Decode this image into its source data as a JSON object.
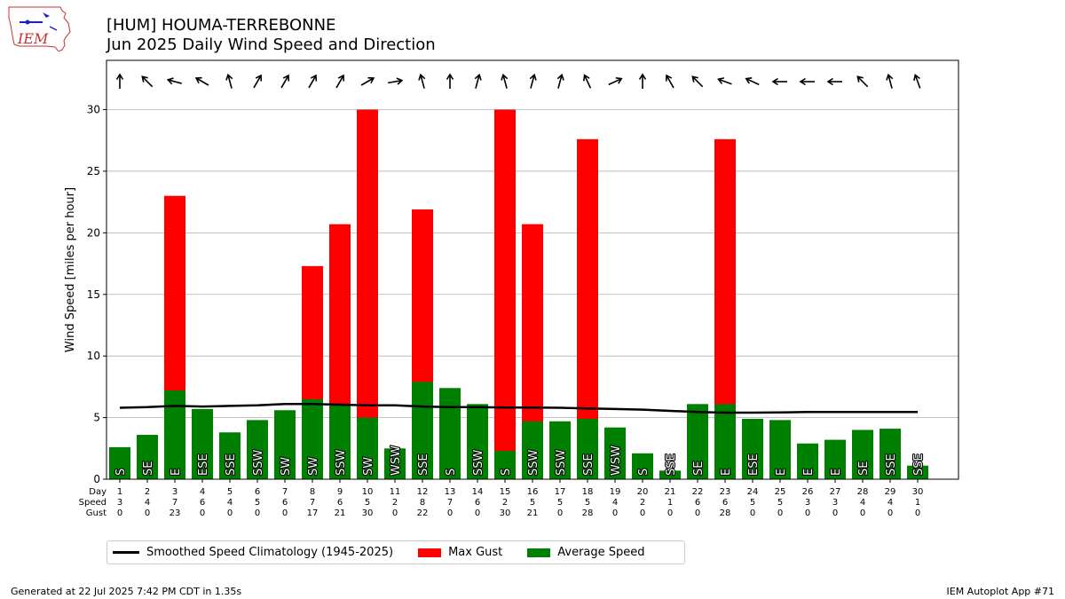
{
  "title": "[HUM] HOUMA-TERREBONNE",
  "subtitle": "Jun 2025 Daily Wind Speed and Direction",
  "logo_text": "IEM",
  "footer_left": "Generated at 22 Jul 2025 7:42 PM CDT in 1.35s",
  "footer_right": "IEM Autoplot App #71",
  "legend": {
    "climatology": "Smoothed Speed Climatology (1945-2025)",
    "gust": "Max Gust",
    "avg": "Average Speed"
  },
  "colors": {
    "gust": "#ff0000",
    "avg": "#008000",
    "climatology": "#000000"
  },
  "chart_data": {
    "type": "bar",
    "ylabel": "Wind Speed [miles per hour]",
    "ylim": [
      0,
      34
    ],
    "yticks": [
      0,
      5,
      10,
      15,
      20,
      25,
      30
    ],
    "grid": true,
    "legend_position": "below",
    "row_labels": [
      "Day",
      "Speed",
      "Gust"
    ],
    "days": [
      1,
      2,
      3,
      4,
      5,
      6,
      7,
      8,
      9,
      10,
      11,
      12,
      13,
      14,
      15,
      16,
      17,
      18,
      19,
      20,
      21,
      22,
      23,
      24,
      25,
      26,
      27,
      28,
      29,
      30
    ],
    "speed_labels": [
      3,
      4,
      7,
      6,
      4,
      5,
      6,
      7,
      6,
      5,
      2,
      8,
      7,
      6,
      2,
      5,
      5,
      5,
      4,
      2,
      1,
      6,
      6,
      5,
      5,
      3,
      3,
      4,
      4,
      1
    ],
    "gust_labels": [
      0,
      0,
      23,
      0,
      0,
      0,
      0,
      17,
      21,
      30,
      0,
      22,
      0,
      0,
      30,
      21,
      0,
      28,
      0,
      0,
      0,
      0,
      28,
      0,
      0,
      0,
      0,
      0,
      0,
      0
    ],
    "avg_speed": [
      2.6,
      3.6,
      7.2,
      5.7,
      3.8,
      4.8,
      5.6,
      6.5,
      6.0,
      5.0,
      2.5,
      7.9,
      7.4,
      6.1,
      2.3,
      4.7,
      4.7,
      4.9,
      4.2,
      2.1,
      0.7,
      6.1,
      6.1,
      4.9,
      4.8,
      2.9,
      3.2,
      4.0,
      4.1,
      1.1
    ],
    "max_gust": [
      0,
      0,
      23.0,
      0,
      0,
      0,
      0,
      17.3,
      20.7,
      30.0,
      0,
      21.9,
      0,
      0,
      30.0,
      20.7,
      0,
      27.6,
      0,
      0,
      0,
      0,
      27.6,
      0,
      0,
      0,
      0,
      0,
      0,
      0
    ],
    "climatology": [
      5.8,
      5.85,
      5.95,
      5.9,
      5.95,
      6.0,
      6.1,
      6.1,
      6.05,
      6.0,
      6.0,
      5.9,
      5.85,
      5.85,
      5.82,
      5.82,
      5.8,
      5.75,
      5.7,
      5.65,
      5.55,
      5.45,
      5.4,
      5.4,
      5.42,
      5.45,
      5.45,
      5.45,
      5.45,
      5.45
    ],
    "direction_labels": [
      "S",
      "SE",
      "E",
      "ESE",
      "SSE",
      "SSW",
      "SW",
      "SW",
      "SSW",
      "SW",
      "WSW",
      "SSE",
      "S",
      "SSW",
      "S",
      "SSW",
      "SSW",
      "SSE",
      "WSW",
      "S",
      "SSE",
      "SE",
      "E",
      "ESE",
      "E",
      "E",
      "E",
      "SE",
      "SSE",
      "SSE"
    ],
    "arrow_deg": [
      0,
      315,
      285,
      300,
      345,
      30,
      30,
      30,
      30,
      60,
      80,
      345,
      0,
      15,
      345,
      15,
      15,
      335,
      65,
      0,
      330,
      315,
      290,
      295,
      270,
      270,
      270,
      315,
      345,
      340
    ]
  }
}
